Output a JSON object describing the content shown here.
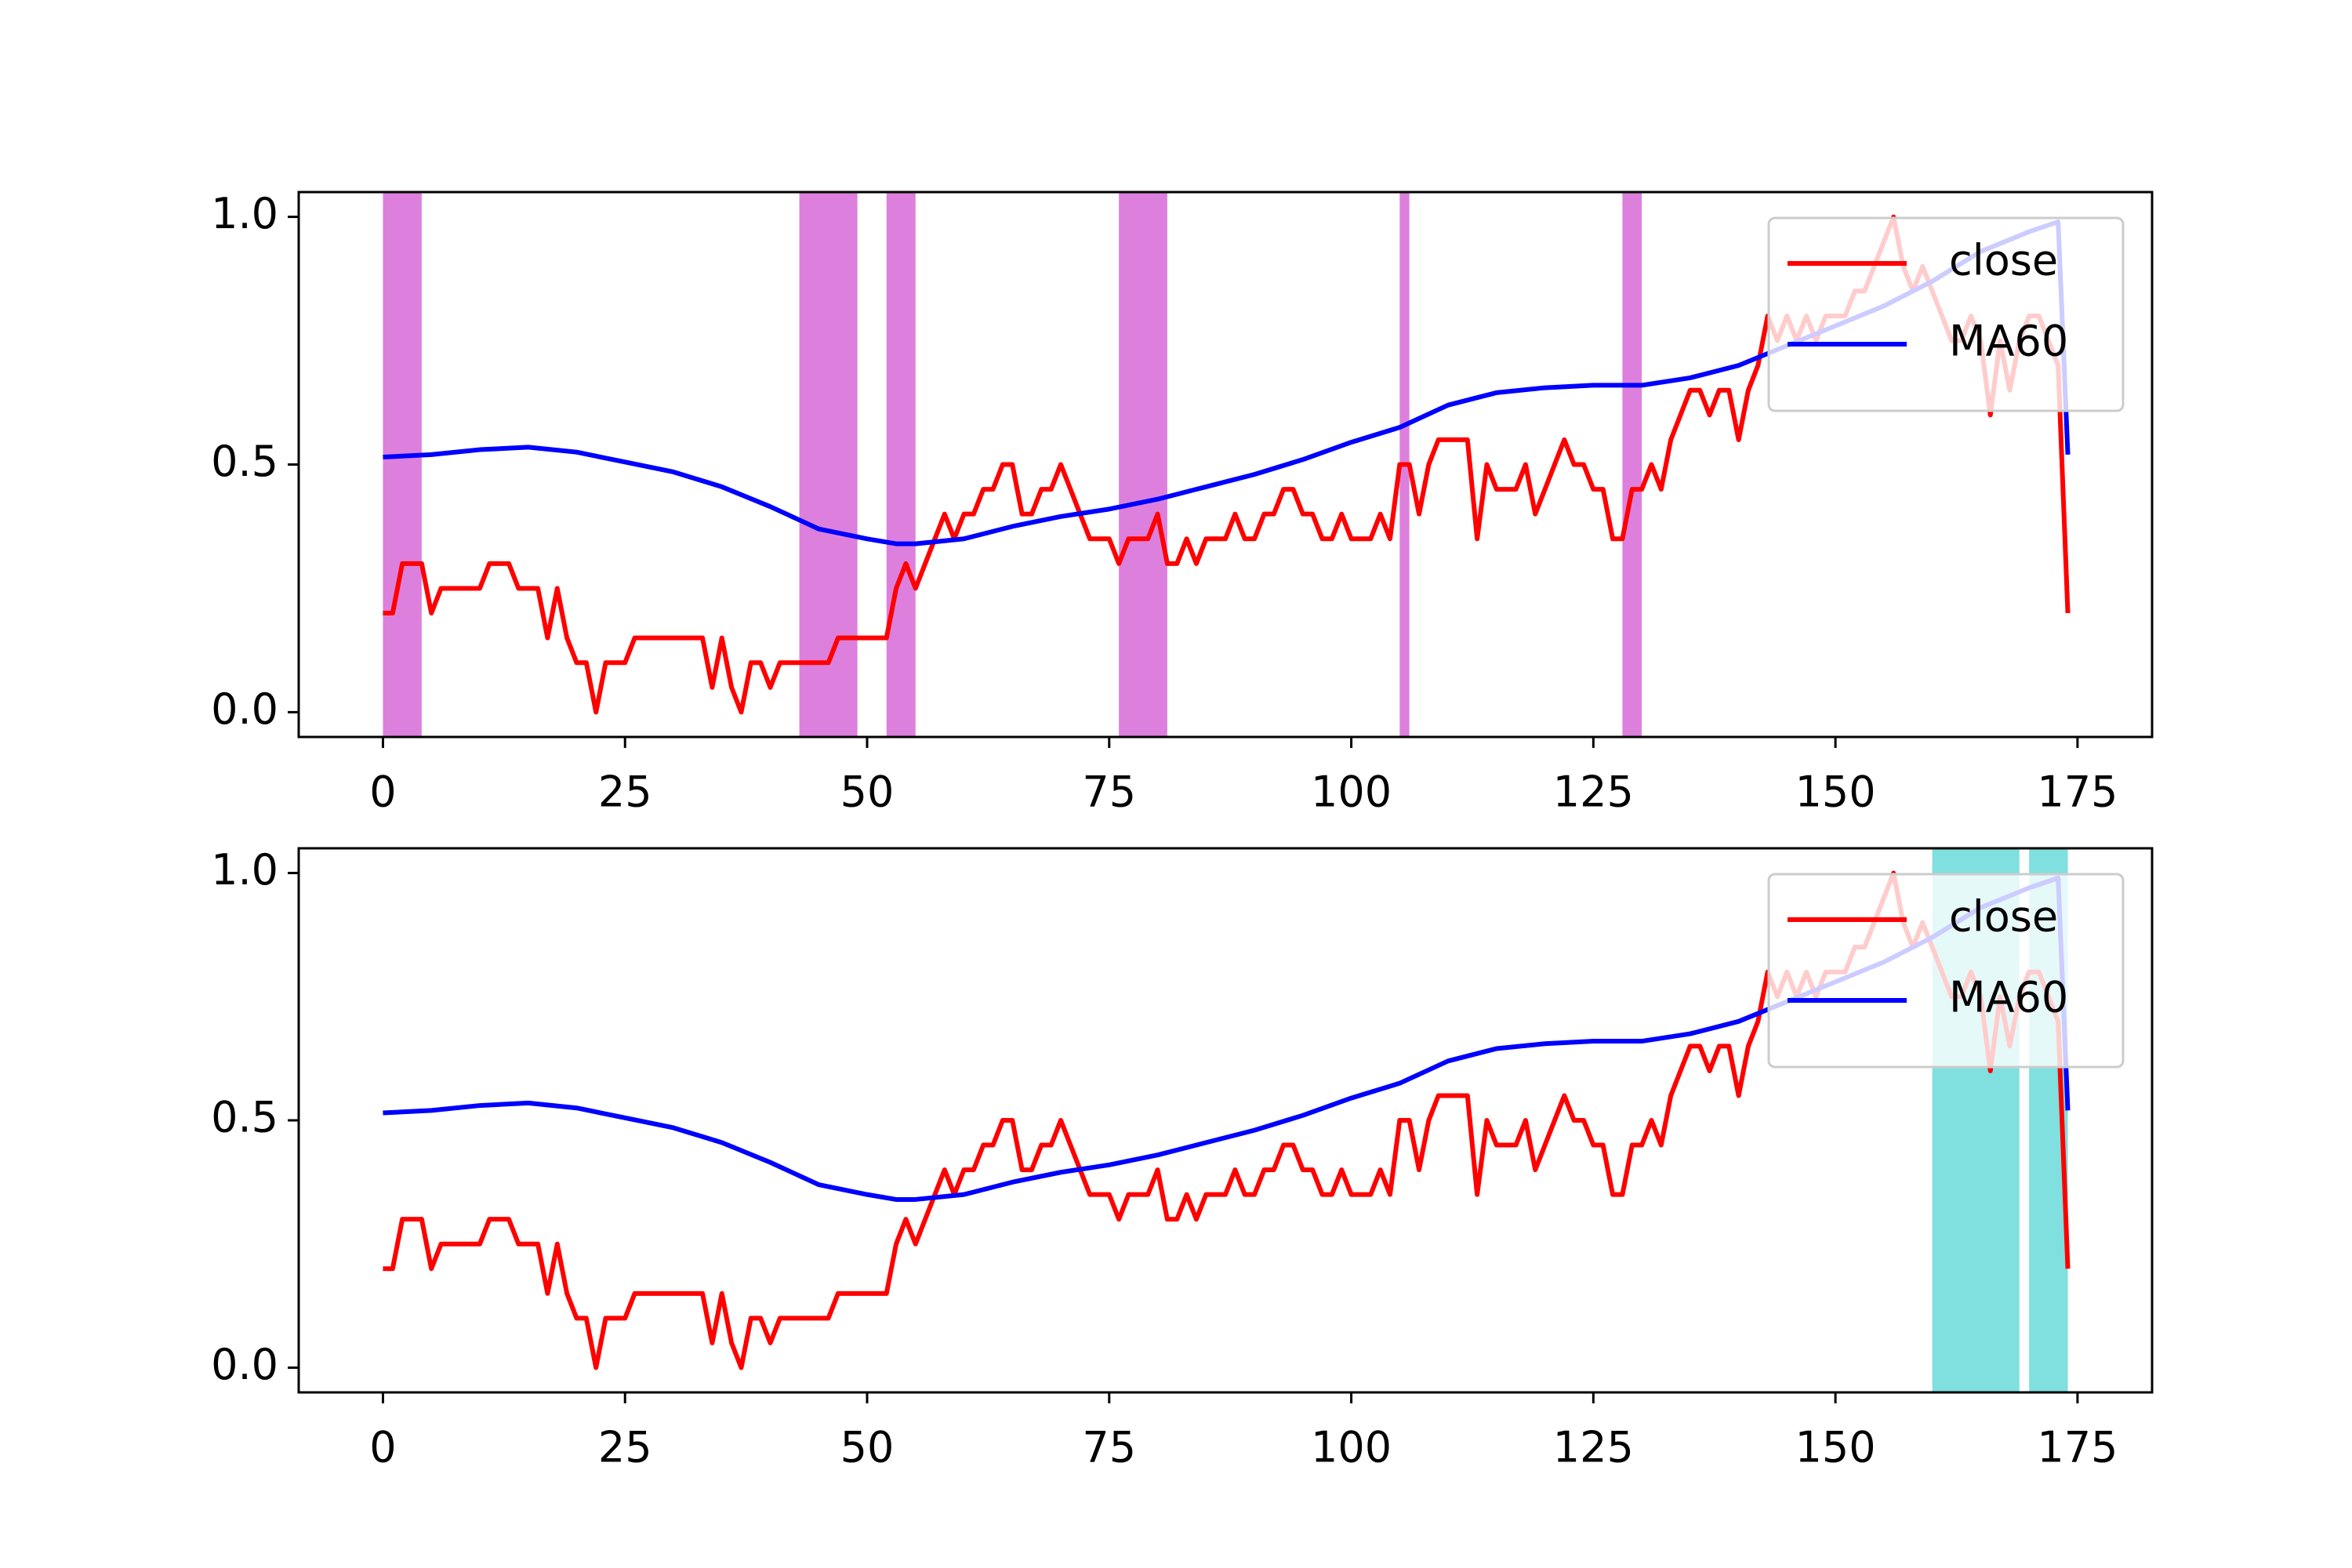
{
  "chart_data": [
    {
      "type": "line",
      "x": [
        0,
        1,
        2,
        3,
        4,
        5,
        6,
        7,
        8,
        9,
        10,
        11,
        12,
        13,
        14,
        15,
        16,
        17,
        18,
        19,
        20,
        21,
        22,
        23,
        24,
        25,
        26,
        27,
        28,
        29,
        30,
        31,
        32,
        33,
        34,
        35,
        36,
        37,
        38,
        39,
        40,
        41,
        42,
        43,
        44,
        45,
        46,
        47,
        48,
        49,
        50,
        51,
        52,
        53,
        54,
        55,
        56,
        57,
        58,
        59,
        60,
        61,
        62,
        63,
        64,
        65,
        66,
        67,
        68,
        69,
        70,
        71,
        72,
        73,
        74,
        75,
        76,
        77,
        78,
        79,
        80,
        81,
        82,
        83,
        84,
        85,
        86,
        87,
        88,
        89,
        90,
        91,
        92,
        93,
        94,
        95,
        96,
        97,
        98,
        99,
        100,
        101,
        102,
        103,
        104,
        105,
        106,
        107,
        108,
        109,
        110,
        111,
        112,
        113,
        114,
        115,
        116,
        117,
        118,
        119,
        120,
        121,
        122,
        123,
        124,
        125,
        126,
        127,
        128,
        129,
        130,
        131,
        132,
        133,
        134,
        135,
        136,
        137,
        138,
        139,
        140,
        141,
        142,
        143,
        144,
        145,
        146,
        147,
        148,
        149,
        150,
        151,
        152,
        153,
        154,
        155,
        156,
        157,
        158,
        159,
        160,
        161,
        162,
        163,
        164,
        165,
        166,
        167,
        168,
        169,
        170,
        171,
        172,
        173,
        174
      ],
      "series": [
        {
          "name": "close",
          "color": "#ff0000",
          "values": [
            0.2,
            0.2,
            0.3,
            0.3,
            0.3,
            0.2,
            0.25,
            0.25,
            0.25,
            0.25,
            0.25,
            0.3,
            0.3,
            0.3,
            0.25,
            0.25,
            0.25,
            0.15,
            0.25,
            0.15,
            0.1,
            0.1,
            0.0,
            0.1,
            0.1,
            0.1,
            0.15,
            0.15,
            0.15,
            0.15,
            0.15,
            0.15,
            0.15,
            0.15,
            0.05,
            0.15,
            0.05,
            0.0,
            0.1,
            0.1,
            0.05,
            0.1,
            0.1,
            0.1,
            0.1,
            0.1,
            0.1,
            0.15,
            0.15,
            0.15,
            0.15,
            0.15,
            0.15,
            0.25,
            0.3,
            0.25,
            0.3,
            0.35,
            0.4,
            0.35,
            0.4,
            0.4,
            0.45,
            0.45,
            0.5,
            0.5,
            0.4,
            0.4,
            0.45,
            0.45,
            0.5,
            0.45,
            0.4,
            0.35,
            0.35,
            0.35,
            0.3,
            0.35,
            0.35,
            0.35,
            0.4,
            0.3,
            0.3,
            0.35,
            0.3,
            0.35,
            0.35,
            0.35,
            0.4,
            0.35,
            0.35,
            0.4,
            0.4,
            0.45,
            0.45,
            0.4,
            0.4,
            0.35,
            0.35,
            0.4,
            0.35,
            0.35,
            0.35,
            0.4,
            0.35,
            0.5,
            0.5,
            0.4,
            0.5,
            0.55,
            0.55,
            0.55,
            0.55,
            0.35,
            0.5,
            0.45,
            0.45,
            0.45,
            0.5,
            0.4,
            0.45,
            0.5,
            0.55,
            0.5,
            0.5,
            0.45,
            0.45,
            0.35,
            0.35,
            0.45,
            0.45,
            0.5,
            0.45,
            0.55,
            0.6,
            0.65,
            0.65,
            0.6,
            0.65,
            0.65,
            0.55,
            0.65,
            0.7,
            0.8,
            0.75,
            0.8,
            0.75,
            0.8,
            0.75,
            0.8,
            0.8,
            0.8,
            0.85,
            0.85,
            0.9,
            0.95,
            1.0,
            0.9,
            0.85,
            0.9,
            0.85,
            0.8,
            0.75,
            0.75,
            0.8,
            0.75,
            0.6,
            0.75,
            0.65,
            0.75,
            0.8,
            0.8,
            0.75,
            0.7,
            0.2
          ]
        },
        {
          "name": "MA60",
          "color": "#0000ff",
          "x": [
            0,
            5,
            10,
            15,
            20,
            25,
            30,
            35,
            40,
            45,
            50,
            53,
            55,
            60,
            65,
            70,
            75,
            80,
            85,
            90,
            95,
            100,
            105,
            110,
            113,
            115,
            120,
            125,
            130,
            135,
            140,
            145,
            150,
            155,
            160,
            165,
            170,
            173,
            174
          ],
          "values": [
            0.515,
            0.52,
            0.53,
            0.535,
            0.525,
            0.505,
            0.485,
            0.455,
            0.415,
            0.37,
            0.35,
            0.34,
            0.34,
            0.35,
            0.375,
            0.395,
            0.41,
            0.43,
            0.455,
            0.48,
            0.51,
            0.545,
            0.575,
            0.62,
            0.635,
            0.645,
            0.655,
            0.66,
            0.66,
            0.675,
            0.7,
            0.74,
            0.78,
            0.82,
            0.87,
            0.93,
            0.97,
            0.99,
            0.52
          ]
        }
      ],
      "spans": [
        [
          0,
          4
        ],
        [
          43,
          49
        ],
        [
          52,
          55
        ],
        [
          76,
          81
        ],
        [
          105,
          106
        ],
        [
          128,
          130
        ]
      ],
      "span_color": "#dd80dd",
      "xlim": [
        -8.7,
        182.7
      ],
      "xticks": [
        0,
        25,
        50,
        75,
        100,
        125,
        150,
        175
      ],
      "ylim": [
        -0.05,
        1.05
      ],
      "yticks": [
        {
          "value": 0,
          "label": "0.0"
        },
        0.5,
        {
          "value": 1,
          "label": "1.0"
        }
      ],
      "legend": "upper right"
    },
    {
      "type": "line",
      "x": [
        0,
        1,
        2,
        3,
        4,
        5,
        6,
        7,
        8,
        9,
        10,
        11,
        12,
        13,
        14,
        15,
        16,
        17,
        18,
        19,
        20,
        21,
        22,
        23,
        24,
        25,
        26,
        27,
        28,
        29,
        30,
        31,
        32,
        33,
        34,
        35,
        36,
        37,
        38,
        39,
        40,
        41,
        42,
        43,
        44,
        45,
        46,
        47,
        48,
        49,
        50,
        51,
        52,
        53,
        54,
        55,
        56,
        57,
        58,
        59,
        60,
        61,
        62,
        63,
        64,
        65,
        66,
        67,
        68,
        69,
        70,
        71,
        72,
        73,
        74,
        75,
        76,
        77,
        78,
        79,
        80,
        81,
        82,
        83,
        84,
        85,
        86,
        87,
        88,
        89,
        90,
        91,
        92,
        93,
        94,
        95,
        96,
        97,
        98,
        99,
        100,
        101,
        102,
        103,
        104,
        105,
        106,
        107,
        108,
        109,
        110,
        111,
        112,
        113,
        114,
        115,
        116,
        117,
        118,
        119,
        120,
        121,
        122,
        123,
        124,
        125,
        126,
        127,
        128,
        129,
        130,
        131,
        132,
        133,
        134,
        135,
        136,
        137,
        138,
        139,
        140,
        141,
        142,
        143,
        144,
        145,
        146,
        147,
        148,
        149,
        150,
        151,
        152,
        153,
        154,
        155,
        156,
        157,
        158,
        159,
        160,
        161,
        162,
        163,
        164,
        165,
        166,
        167,
        168,
        169,
        170,
        171,
        172,
        173,
        174
      ],
      "series": [
        {
          "name": "close",
          "color": "#ff0000",
          "values": [
            0.2,
            0.2,
            0.3,
            0.3,
            0.3,
            0.2,
            0.25,
            0.25,
            0.25,
            0.25,
            0.25,
            0.3,
            0.3,
            0.3,
            0.25,
            0.25,
            0.25,
            0.15,
            0.25,
            0.15,
            0.1,
            0.1,
            0.0,
            0.1,
            0.1,
            0.1,
            0.15,
            0.15,
            0.15,
            0.15,
            0.15,
            0.15,
            0.15,
            0.15,
            0.05,
            0.15,
            0.05,
            0.0,
            0.1,
            0.1,
            0.05,
            0.1,
            0.1,
            0.1,
            0.1,
            0.1,
            0.1,
            0.15,
            0.15,
            0.15,
            0.15,
            0.15,
            0.15,
            0.25,
            0.3,
            0.25,
            0.3,
            0.35,
            0.4,
            0.35,
            0.4,
            0.4,
            0.45,
            0.45,
            0.5,
            0.5,
            0.4,
            0.4,
            0.45,
            0.45,
            0.5,
            0.45,
            0.4,
            0.35,
            0.35,
            0.35,
            0.3,
            0.35,
            0.35,
            0.35,
            0.4,
            0.3,
            0.3,
            0.35,
            0.3,
            0.35,
            0.35,
            0.35,
            0.4,
            0.35,
            0.35,
            0.4,
            0.4,
            0.45,
            0.45,
            0.4,
            0.4,
            0.35,
            0.35,
            0.4,
            0.35,
            0.35,
            0.35,
            0.4,
            0.35,
            0.5,
            0.5,
            0.4,
            0.5,
            0.55,
            0.55,
            0.55,
            0.55,
            0.35,
            0.5,
            0.45,
            0.45,
            0.45,
            0.5,
            0.4,
            0.45,
            0.5,
            0.55,
            0.5,
            0.5,
            0.45,
            0.45,
            0.35,
            0.35,
            0.45,
            0.45,
            0.5,
            0.45,
            0.55,
            0.6,
            0.65,
            0.65,
            0.6,
            0.65,
            0.65,
            0.55,
            0.65,
            0.7,
            0.8,
            0.75,
            0.8,
            0.75,
            0.8,
            0.75,
            0.8,
            0.8,
            0.8,
            0.85,
            0.85,
            0.9,
            0.95,
            1.0,
            0.9,
            0.85,
            0.9,
            0.85,
            0.8,
            0.75,
            0.75,
            0.8,
            0.75,
            0.6,
            0.75,
            0.65,
            0.75,
            0.8,
            0.8,
            0.75,
            0.7,
            0.2
          ]
        },
        {
          "name": "MA60",
          "color": "#0000ff",
          "x": [
            0,
            5,
            10,
            15,
            20,
            25,
            30,
            35,
            40,
            45,
            50,
            53,
            55,
            60,
            65,
            70,
            75,
            80,
            85,
            90,
            95,
            100,
            105,
            110,
            113,
            115,
            120,
            125,
            130,
            135,
            140,
            145,
            150,
            155,
            160,
            165,
            170,
            173,
            174
          ],
          "values": [
            0.515,
            0.52,
            0.53,
            0.535,
            0.525,
            0.505,
            0.485,
            0.455,
            0.415,
            0.37,
            0.35,
            0.34,
            0.34,
            0.35,
            0.375,
            0.395,
            0.41,
            0.43,
            0.455,
            0.48,
            0.51,
            0.545,
            0.575,
            0.62,
            0.635,
            0.645,
            0.655,
            0.66,
            0.66,
            0.675,
            0.7,
            0.74,
            0.78,
            0.82,
            0.87,
            0.93,
            0.97,
            0.99,
            0.52
          ]
        }
      ],
      "spans": [
        [
          160,
          169
        ],
        [
          170,
          174
        ]
      ],
      "span_color": "#80dfdf",
      "xlim": [
        -8.7,
        182.7
      ],
      "xticks": [
        0,
        25,
        50,
        75,
        100,
        125,
        150,
        175
      ],
      "ylim": [
        -0.05,
        1.05
      ],
      "yticks": [
        {
          "value": 0,
          "label": "0.0"
        },
        0.5,
        {
          "value": 1,
          "label": "1.0"
        }
      ],
      "legend": "upper right"
    }
  ]
}
